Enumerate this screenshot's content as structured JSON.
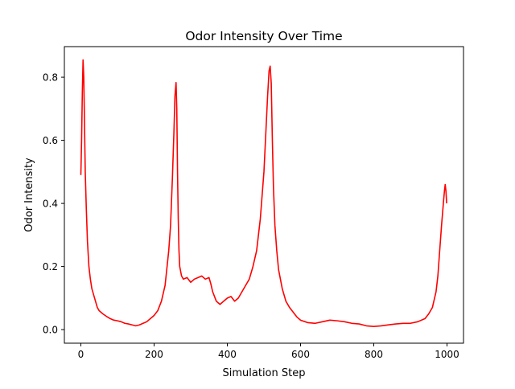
{
  "chart_data": {
    "type": "line",
    "title": "Odor Intensity Over Time",
    "xlabel": "Simulation Step",
    "ylabel": "Odor Intensity",
    "xlim": [
      -45,
      1045
    ],
    "ylim": [
      -0.043,
      0.897
    ],
    "xticks": [
      0,
      200,
      400,
      600,
      800,
      1000
    ],
    "yticks": [
      0.0,
      0.2,
      0.4,
      0.6,
      0.8
    ],
    "xtick_labels": [
      "0",
      "200",
      "400",
      "600",
      "800",
      "1000"
    ],
    "ytick_labels": [
      "0.0",
      "0.2",
      "0.4",
      "0.6",
      "0.8"
    ],
    "grid": false,
    "legend": "none",
    "series": [
      {
        "color": "#ff0000",
        "x": [
          0,
          2,
          4,
          6,
          8,
          10,
          12,
          15,
          18,
          22,
          26,
          30,
          35,
          40,
          45,
          50,
          55,
          60,
          70,
          80,
          90,
          100,
          110,
          120,
          130,
          140,
          150,
          160,
          170,
          180,
          190,
          200,
          210,
          220,
          230,
          240,
          245,
          250,
          254,
          257,
          260,
          262,
          264,
          266,
          268,
          270,
          275,
          280,
          290,
          300,
          310,
          320,
          330,
          340,
          350,
          355,
          360,
          370,
          380,
          390,
          400,
          410,
          420,
          430,
          440,
          450,
          460,
          470,
          480,
          490,
          500,
          505,
          510,
          514,
          517,
          520,
          523,
          526,
          530,
          535,
          540,
          550,
          560,
          570,
          580,
          590,
          600,
          620,
          640,
          660,
          680,
          700,
          720,
          740,
          760,
          780,
          800,
          820,
          840,
          860,
          880,
          900,
          920,
          940,
          950,
          960,
          970,
          975,
          980,
          985,
          990,
          993,
          995,
          997,
          999
        ],
        "y": [
          0.49,
          0.6,
          0.75,
          0.855,
          0.8,
          0.65,
          0.5,
          0.38,
          0.28,
          0.2,
          0.16,
          0.13,
          0.11,
          0.09,
          0.07,
          0.06,
          0.055,
          0.05,
          0.042,
          0.035,
          0.03,
          0.028,
          0.025,
          0.02,
          0.018,
          0.015,
          0.012,
          0.015,
          0.02,
          0.025,
          0.035,
          0.045,
          0.06,
          0.09,
          0.14,
          0.25,
          0.33,
          0.48,
          0.62,
          0.74,
          0.783,
          0.7,
          0.5,
          0.35,
          0.25,
          0.2,
          0.17,
          0.16,
          0.165,
          0.15,
          0.16,
          0.165,
          0.17,
          0.16,
          0.165,
          0.145,
          0.12,
          0.09,
          0.08,
          0.09,
          0.1,
          0.105,
          0.09,
          0.1,
          0.12,
          0.14,
          0.16,
          0.2,
          0.25,
          0.35,
          0.5,
          0.62,
          0.74,
          0.82,
          0.835,
          0.78,
          0.6,
          0.45,
          0.33,
          0.25,
          0.19,
          0.13,
          0.09,
          0.07,
          0.055,
          0.04,
          0.03,
          0.022,
          0.02,
          0.025,
          0.03,
          0.028,
          0.025,
          0.02,
          0.018,
          0.012,
          0.01,
          0.012,
          0.015,
          0.018,
          0.02,
          0.02,
          0.025,
          0.035,
          0.05,
          0.07,
          0.12,
          0.17,
          0.25,
          0.33,
          0.4,
          0.44,
          0.46,
          0.44,
          0.4
        ]
      }
    ]
  }
}
